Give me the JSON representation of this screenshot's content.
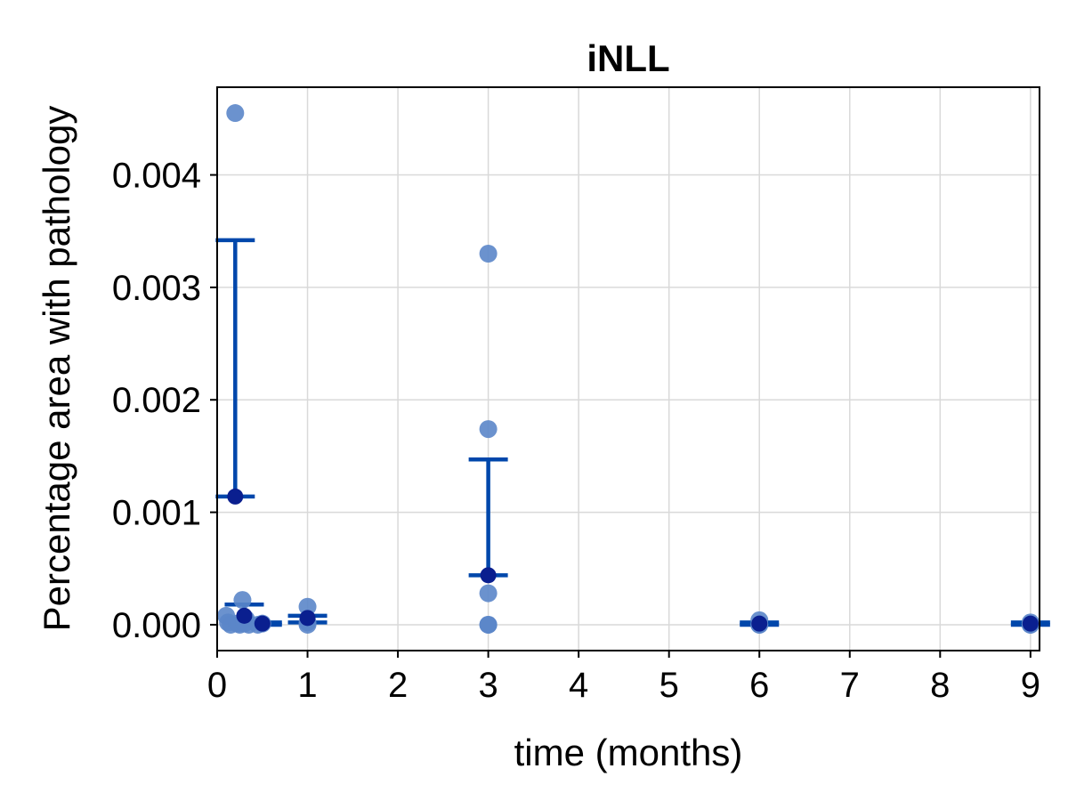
{
  "chart_data": {
    "type": "scatter",
    "title": "iNLL",
    "xlabel": "time (months)",
    "ylabel": "Percentage area with pathology",
    "xlim": [
      0,
      9.1
    ],
    "ylim": [
      -0.00023,
      0.00478
    ],
    "x_ticks": [
      0,
      1,
      2,
      3,
      4,
      5,
      6,
      7,
      8,
      9
    ],
    "x_tick_labels": [
      "0",
      "1",
      "2",
      "3",
      "4",
      "5",
      "6",
      "7",
      "8",
      "9"
    ],
    "y_ticks": [
      0.0,
      0.001,
      0.002,
      0.003,
      0.004
    ],
    "y_tick_labels": [
      "0.000",
      "0.001",
      "0.002",
      "0.003",
      "0.004"
    ],
    "grid": true,
    "colors": {
      "points": "#5b86c9",
      "mean": "#0a1f8f",
      "errorbar": "#0047ab"
    },
    "points": [
      {
        "x": 0.1,
        "y": 8e-05
      },
      {
        "x": 0.12,
        "y": 2e-05
      },
      {
        "x": 0.15,
        "y": 0.0
      },
      {
        "x": 0.2,
        "y": 0.00455
      },
      {
        "x": 0.22,
        "y": 1e-05
      },
      {
        "x": 0.25,
        "y": 0.0
      },
      {
        "x": 0.28,
        "y": 0.00022
      },
      {
        "x": 0.3,
        "y": 1e-05
      },
      {
        "x": 0.32,
        "y": 5e-05
      },
      {
        "x": 0.35,
        "y": 0.0
      },
      {
        "x": 0.45,
        "y": 0.0
      },
      {
        "x": 0.5,
        "y": 1e-05
      },
      {
        "x": 1.0,
        "y": 0.00016
      },
      {
        "x": 1.0,
        "y": 2e-05
      },
      {
        "x": 1.0,
        "y": 0.0
      },
      {
        "x": 3.0,
        "y": 0.0033
      },
      {
        "x": 3.0,
        "y": 0.00174
      },
      {
        "x": 3.0,
        "y": 0.00028
      },
      {
        "x": 3.0,
        "y": 0.0
      },
      {
        "x": 3.0,
        "y": 0.0
      },
      {
        "x": 6.0,
        "y": 4e-05
      },
      {
        "x": 6.0,
        "y": 0.0
      },
      {
        "x": 6.0,
        "y": 0.0
      },
      {
        "x": 9.0,
        "y": 2e-05
      },
      {
        "x": 9.0,
        "y": 0.0
      },
      {
        "x": 9.0,
        "y": 0.0
      }
    ],
    "means": [
      {
        "x": 0.2,
        "y": 0.00114,
        "lower": 0.00114,
        "upper": 0.00342
      },
      {
        "x": 0.3,
        "y": 8e-05,
        "lower": 2e-05,
        "upper": 0.00018
      },
      {
        "x": 0.5,
        "y": 1e-05,
        "lower": 0.0,
        "upper": 2e-05
      },
      {
        "x": 1.0,
        "y": 6e-05,
        "lower": 2e-05,
        "upper": 8e-05
      },
      {
        "x": 3.0,
        "y": 0.00044,
        "lower": 0.00044,
        "upper": 0.00147
      },
      {
        "x": 6.0,
        "y": 1e-05,
        "lower": 0.0,
        "upper": 2e-05
      },
      {
        "x": 9.0,
        "y": 1e-05,
        "lower": 0.0,
        "upper": 2e-05
      }
    ]
  }
}
